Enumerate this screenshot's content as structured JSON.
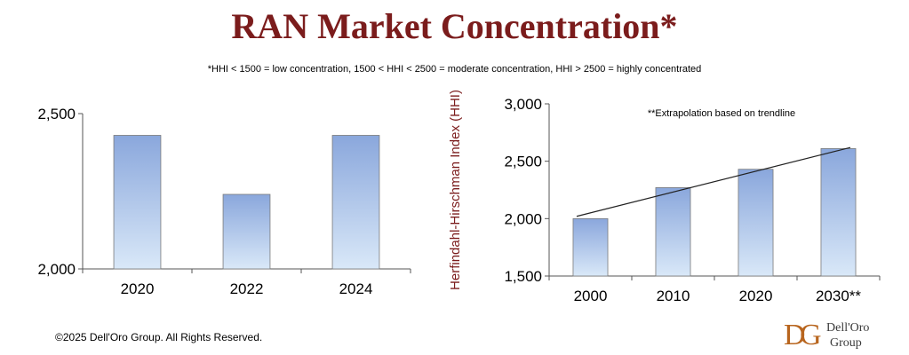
{
  "title": "RAN Market Concentration*",
  "footnote": "*HHI < 1500 = low concentration, 1500 < HHI < 2500 = moderate concentration, HHI > 2500 = highly concentrated",
  "copyright": "©2025 Dell'Oro Group. All Rights Reserved.",
  "logo": {
    "line1": "Dell'Oro",
    "line2": "Group",
    "mark": "DG"
  },
  "colors": {
    "title": "#7b1c1c",
    "bar_top": "#8aa7dc",
    "bar_bottom": "#d9e8f8",
    "bar_border": "#7a7a7a"
  },
  "chart_data": [
    {
      "type": "bar",
      "categories": [
        "2020",
        "2022",
        "2024"
      ],
      "values": [
        2430,
        2240,
        2430
      ],
      "ylabel": "Herfindahl-Hirschman Index (HHI)",
      "ylim": [
        2000,
        2500
      ],
      "yticks": [
        2000,
        2500
      ],
      "ytick_labels": [
        "2,000",
        "2,500"
      ],
      "grid": false,
      "legend": "none"
    },
    {
      "type": "bar",
      "categories": [
        "2000",
        "2010",
        "2020",
        "2030**"
      ],
      "values": [
        2000,
        2270,
        2430,
        2610
      ],
      "ylabel": "Herfindahl-Hirschman Index (HHI)",
      "ylim": [
        1500,
        3000
      ],
      "yticks": [
        1500,
        2000,
        2500,
        3000
      ],
      "ytick_labels": [
        "1,500",
        "2,000",
        "2,500",
        "3,000"
      ],
      "annotation": "**Extrapolation based on trendline",
      "trendline": {
        "start": 2020,
        "end": 2620
      },
      "grid": false,
      "legend": "none"
    }
  ]
}
